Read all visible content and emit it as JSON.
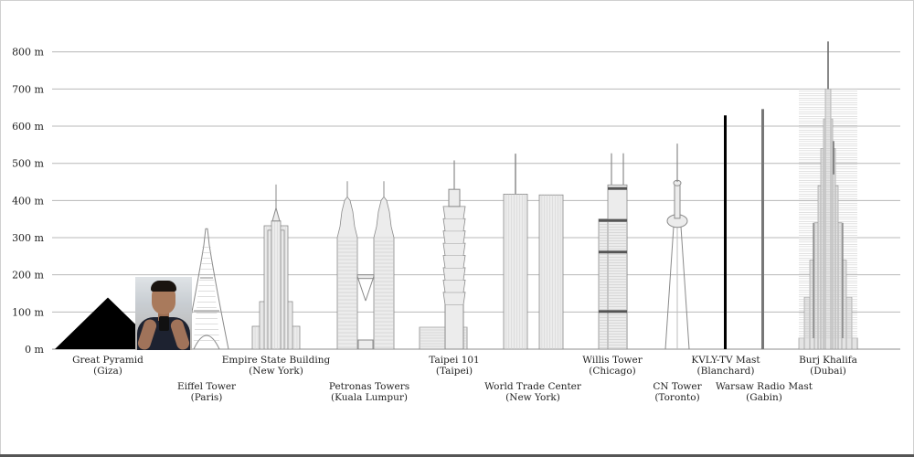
{
  "chart_data": {
    "type": "bar",
    "yunit": "m",
    "ylim": [
      0,
      850
    ],
    "yticks": [
      "0 m",
      "100 m",
      "200 m",
      "300 m",
      "400 m",
      "500 m",
      "600 m",
      "700 m",
      "800 m"
    ],
    "ytick_values": [
      0,
      100,
      200,
      300,
      400,
      500,
      600,
      700,
      800
    ],
    "grid": true,
    "structures": [
      {
        "name": "Great Pyramid",
        "place": "(Giza)",
        "height": 139,
        "kind": "pyramid",
        "row": 1
      },
      {
        "name": "Eiffel Tower",
        "place": "(Paris)",
        "height": 324,
        "kind": "eiffel",
        "row": 2
      },
      {
        "name": "Empire State Building",
        "place": "(New York)",
        "height": 443,
        "kind": "empire",
        "row": 1
      },
      {
        "name": "Petronas Towers",
        "place": "(Kuala Lumpur)",
        "height": 452,
        "kind": "petronas",
        "row": 2
      },
      {
        "name": "Taipei 101",
        "place": "(Taipei)",
        "height": 508,
        "kind": "taipei",
        "row": 1
      },
      {
        "name": "World Trade Center",
        "place": "(New York)",
        "height": 526,
        "kind": "wtc",
        "row": 2
      },
      {
        "name": "Willis Tower",
        "place": "(Chicago)",
        "height": 527,
        "kind": "willis",
        "row": 1
      },
      {
        "name": "CN Tower",
        "place": "(Toronto)",
        "height": 553,
        "kind": "cn",
        "row": 2
      },
      {
        "name": "KVLY-TV Mast",
        "place": "(Blanchard)",
        "height": 629,
        "kind": "mast_black",
        "row": 1
      },
      {
        "name": "Warsaw Radio Mast",
        "place": "(Gabin)",
        "height": 646,
        "kind": "mast_gray",
        "row": 2
      },
      {
        "name": "Burj Khalifa",
        "place": "(Dubai)",
        "height": 828,
        "kind": "burj",
        "row": 1
      }
    ]
  },
  "colors": {
    "grid": "#b8b8b8",
    "outline": "#8a8a8a",
    "fill": "#ececec",
    "pyramid": "#000000",
    "mast_black": "#000000",
    "mast_gray": "#777777"
  },
  "photo": {
    "icon": "person-photo"
  }
}
